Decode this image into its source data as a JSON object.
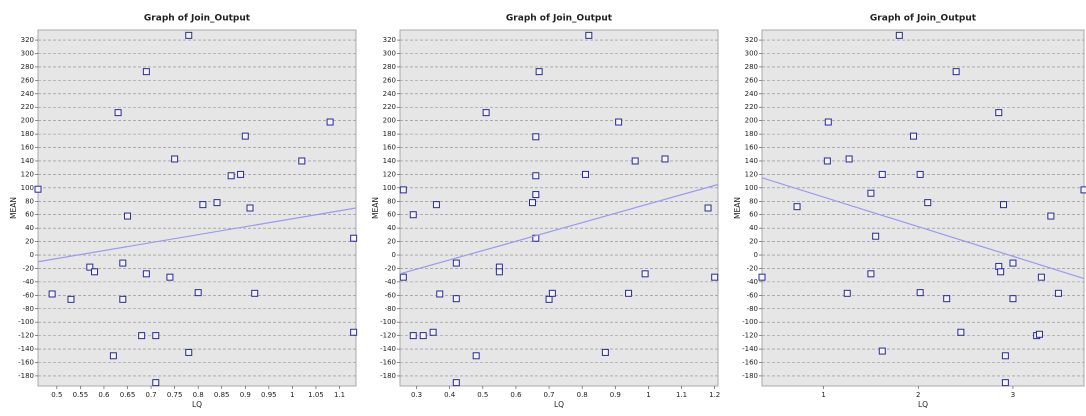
{
  "chart_data": [
    {
      "type": "scatter",
      "title": "Graph of Join_Output",
      "x_label": "LQ",
      "y_label": "MEAN",
      "color": "#2a2a9a",
      "trend_color": "#9a9af0",
      "grid": true,
      "x": [
        0.46,
        0.49,
        0.53,
        0.57,
        0.58,
        0.64,
        0.64,
        0.65,
        0.63,
        0.62,
        0.68,
        0.69,
        0.69,
        0.71,
        0.71,
        0.74,
        0.75,
        0.78,
        0.78,
        0.8,
        0.81,
        0.84,
        0.87,
        0.89,
        0.9,
        0.91,
        0.92,
        1.02,
        1.08,
        1.13,
        1.13
      ],
      "y": [
        98,
        -58,
        -66,
        -18,
        -25,
        -12,
        -66,
        58,
        212,
        -150,
        -120,
        273,
        -28,
        -120,
        -190,
        -33,
        143,
        327,
        -145,
        -56,
        75,
        78,
        118,
        120,
        177,
        70,
        -57,
        140,
        198,
        25,
        -115
      ],
      "trend_x": [
        0.46,
        1.135
      ],
      "trend_y": [
        -10,
        70
      ],
      "xlim": [
        0.46,
        1.135
      ],
      "ylim": [
        -195,
        335
      ],
      "xticks": [
        0.5,
        0.55,
        0.6,
        0.65,
        0.7,
        0.75,
        0.8,
        0.85,
        0.9,
        0.95,
        1,
        1.05,
        1.1
      ],
      "yticks": [
        -180,
        -160,
        -140,
        -120,
        -100,
        -80,
        -60,
        -40,
        -20,
        0,
        20,
        40,
        60,
        80,
        100,
        120,
        140,
        160,
        180,
        200,
        220,
        240,
        260,
        280,
        300,
        320
      ]
    },
    {
      "type": "scatter",
      "title": "Graph of Join_Output",
      "x_label": "LQ",
      "y_label": "MEAN",
      "color": "#2a2a9a",
      "trend_color": "#9a9af0",
      "grid": true,
      "x": [
        0.26,
        0.26,
        0.29,
        0.29,
        0.32,
        0.35,
        0.36,
        0.37,
        0.42,
        0.42,
        0.42,
        0.48,
        0.51,
        0.55,
        0.55,
        0.65,
        0.66,
        0.66,
        0.66,
        0.66,
        0.67,
        0.7,
        0.71,
        0.81,
        0.82,
        0.87,
        0.91,
        0.94,
        0.96,
        0.99,
        1.05,
        1.18,
        1.2
      ],
      "y": [
        97,
        -33,
        60,
        -120,
        -120,
        -115,
        75,
        -58,
        -12,
        -65,
        -190,
        -150,
        212,
        -18,
        -25,
        78,
        90,
        118,
        176,
        25,
        273,
        -66,
        -57,
        120,
        327,
        -145,
        198,
        -57,
        140,
        -28,
        143,
        70,
        -33
      ],
      "trend_x": [
        0.25,
        1.21
      ],
      "trend_y": [
        -28,
        105
      ],
      "xlim": [
        0.25,
        1.21
      ],
      "ylim": [
        -195,
        335
      ],
      "xticks": [
        0.3,
        0.4,
        0.5,
        0.6,
        0.7,
        0.8,
        0.9,
        1,
        1.1,
        1.2
      ],
      "yticks": [
        -180,
        -160,
        -140,
        -120,
        -100,
        -80,
        -60,
        -40,
        -20,
        0,
        20,
        40,
        60,
        80,
        100,
        120,
        140,
        160,
        180,
        200,
        220,
        240,
        260,
        280,
        300,
        320
      ]
    },
    {
      "type": "scatter",
      "title": "Graph of Join_Output",
      "x_label": "LQ",
      "y_label": "MEAN",
      "color": "#2a2a9a",
      "trend_color": "#9a9af0",
      "grid": true,
      "x": [
        0.35,
        0.72,
        1.05,
        1.04,
        1.27,
        1.25,
        1.5,
        1.5,
        1.55,
        1.62,
        1.62,
        1.8,
        1.95,
        2.02,
        2.02,
        2.1,
        2.3,
        2.4,
        2.45,
        2.85,
        2.85,
        2.87,
        2.9,
        2.92,
        2.92,
        3.0,
        3.0,
        3.25,
        3.28,
        3.3,
        3.4,
        3.48,
        3.75
      ],
      "y": [
        -33,
        72,
        198,
        140,
        143,
        -57,
        92,
        -28,
        28,
        120,
        -143,
        327,
        177,
        120,
        -56,
        78,
        -65,
        273,
        -115,
        212,
        -17,
        -25,
        75,
        -150,
        -190,
        -12,
        -65,
        -120,
        -118,
        -33,
        58,
        -57,
        97
      ],
      "trend_x": [
        0.35,
        3.75
      ],
      "trend_y": [
        115,
        -35
      ],
      "xlim": [
        0.35,
        3.75
      ],
      "ylim": [
        -195,
        335
      ],
      "xticks": [
        1,
        2,
        3
      ],
      "yticks": [
        -180,
        -160,
        -140,
        -120,
        -100,
        -80,
        -60,
        -40,
        -20,
        0,
        20,
        40,
        60,
        80,
        100,
        120,
        140,
        160,
        180,
        200,
        220,
        240,
        260,
        280,
        300,
        320
      ]
    }
  ]
}
